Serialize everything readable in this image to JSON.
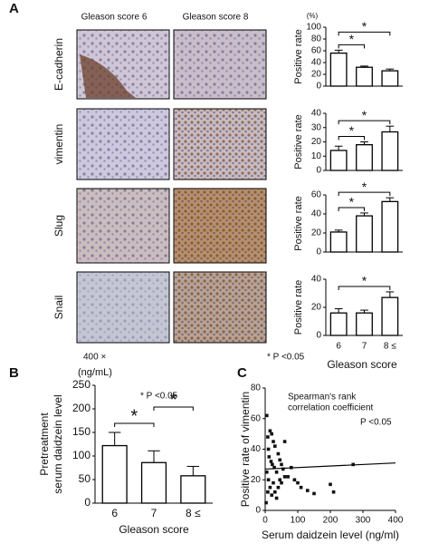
{
  "panel_a": {
    "label": "A",
    "column_headers": [
      "Gleason score 6",
      "Gleason score 8"
    ],
    "row_labels": [
      "E-cadherin",
      "vimentin",
      "Slug",
      "Snail"
    ],
    "magnification": "400 ×",
    "note": "* P <0.05",
    "x_label": "Gleason score",
    "y_unit": "(%)"
  },
  "chart_data": [
    {
      "type": "bar",
      "y_label": "Positive rate",
      "values": [
        56,
        32,
        26
      ],
      "errors": [
        5,
        2,
        3
      ],
      "ylim": [
        0,
        100
      ],
      "yticks": [
        0,
        20,
        40,
        60,
        80,
        100
      ],
      "significance": [
        {
          "between": [
            0,
            1
          ],
          "label": "*"
        },
        {
          "between": [
            0,
            2
          ],
          "label": "*"
        }
      ]
    },
    {
      "type": "bar",
      "y_label": "Positive rate",
      "values": [
        14,
        18,
        27
      ],
      "errors": [
        3,
        2,
        4
      ],
      "ylim": [
        0,
        40
      ],
      "yticks": [
        0,
        10,
        20,
        30,
        40
      ],
      "significance": [
        {
          "between": [
            0,
            1
          ],
          "label": "*"
        },
        {
          "between": [
            0,
            2
          ],
          "label": "*"
        }
      ]
    },
    {
      "type": "bar",
      "y_label": "Positive rate",
      "values": [
        21,
        38,
        53
      ],
      "errors": [
        2,
        3,
        4
      ],
      "ylim": [
        0,
        60
      ],
      "yticks": [
        0,
        20,
        40,
        60
      ],
      "significance": [
        {
          "between": [
            0,
            1
          ],
          "label": "*"
        },
        {
          "between": [
            0,
            2
          ],
          "label": "*"
        }
      ]
    },
    {
      "type": "bar",
      "y_label": "Positive rate",
      "categories": [
        "6",
        "7",
        "8 ≤"
      ],
      "values": [
        16,
        16,
        27
      ],
      "errors": [
        3,
        2,
        4
      ],
      "ylim": [
        0,
        40
      ],
      "yticks": [
        0,
        20,
        40
      ],
      "significance": [
        {
          "between": [
            0,
            2
          ],
          "label": "*"
        }
      ]
    },
    {
      "type": "bar",
      "panel": "B",
      "y_label": [
        "Pretreatment",
        "serum daidzein  level"
      ],
      "y_unit": "(ng/mL)",
      "note": "* P <0.05",
      "x_label": "Gleason score",
      "categories": [
        "6",
        "7",
        "8 ≤"
      ],
      "values": [
        122,
        86,
        58
      ],
      "errors": [
        28,
        25,
        20
      ],
      "ylim": [
        0,
        250
      ],
      "yticks": [
        0,
        50,
        100,
        150,
        200,
        250
      ],
      "significance": [
        {
          "between": [
            0,
            1
          ],
          "label": "*"
        },
        {
          "between": [
            1,
            2
          ],
          "label": "*"
        }
      ]
    },
    {
      "type": "scatter",
      "panel": "C",
      "x_label": "Serum daidzein level (ng/ml)",
      "y_label": "Positive rate of vimentin",
      "annotation": [
        "Spearman's rank",
        "correlation coefficient"
      ],
      "note": "P <0.05",
      "x": [
        5,
        8,
        10,
        15,
        20,
        25,
        30,
        12,
        18,
        22,
        28,
        35,
        40,
        45,
        50,
        55,
        60,
        60,
        5,
        10,
        15,
        20,
        25,
        30,
        35,
        40,
        45,
        50,
        70,
        80,
        90,
        100,
        110,
        130,
        150,
        200,
        210,
        270,
        3,
        8
      ],
      "y": [
        62,
        48,
        40,
        52,
        50,
        45,
        42,
        35,
        32,
        30,
        28,
        25,
        37,
        33,
        30,
        27,
        45,
        22,
        25,
        20,
        15,
        10,
        18,
        12,
        8,
        15,
        20,
        18,
        22,
        28,
        20,
        18,
        15,
        13,
        11,
        17,
        12,
        30,
        5,
        12
      ],
      "fit_line": {
        "x": [
          0,
          400
        ],
        "y": [
          27,
          31
        ]
      },
      "xlim": [
        0,
        400
      ],
      "xticks": [
        0,
        100,
        200,
        300,
        400
      ],
      "ylim": [
        0,
        80
      ],
      "yticks": [
        0,
        20,
        40,
        60,
        80
      ]
    }
  ]
}
